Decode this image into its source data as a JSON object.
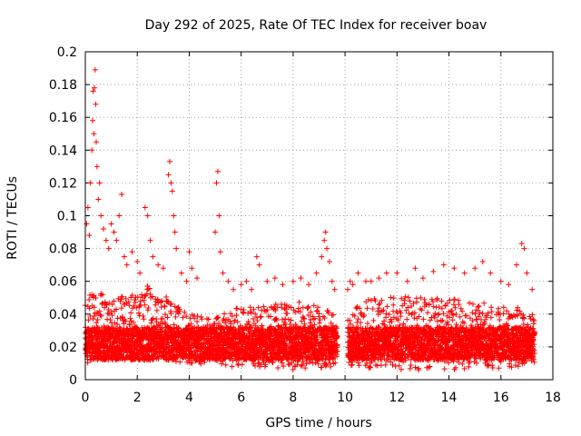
{
  "chart_data": {
    "type": "scatter",
    "title": "Day 292 of 2025, Rate Of TEC Index for receiver boav",
    "xlabel": "GPS time / hours",
    "ylabel": "ROTI / TECUs",
    "xlim": [
      0,
      18
    ],
    "ylim": [
      0,
      0.2
    ],
    "xticks": [
      "0",
      "2",
      "4",
      "6",
      "8",
      "10",
      "12",
      "14",
      "16",
      "18"
    ],
    "yticks": [
      "0",
      "0.02",
      "0.04",
      "0.06",
      "0.08",
      "0.1",
      "0.12",
      "0.14",
      "0.16",
      "0.18",
      "0.2"
    ],
    "grid": true,
    "marker": "+",
    "color": "#ff0000",
    "series": [
      {
        "points": [
          [
            0.05,
            0.095
          ],
          [
            0.1,
            0.105
          ],
          [
            0.15,
            0.088
          ],
          [
            0.2,
            0.12
          ],
          [
            0.25,
            0.14
          ],
          [
            0.28,
            0.158
          ],
          [
            0.3,
            0.176
          ],
          [
            0.33,
            0.15
          ],
          [
            0.35,
            0.178
          ],
          [
            0.38,
            0.189
          ],
          [
            0.4,
            0.168
          ],
          [
            0.42,
            0.145
          ],
          [
            0.45,
            0.13
          ],
          [
            0.5,
            0.11
          ],
          [
            0.55,
            0.12
          ],
          [
            0.6,
            0.1
          ],
          [
            0.7,
            0.092
          ],
          [
            0.8,
            0.085
          ],
          [
            0.9,
            0.08
          ],
          [
            1.0,
            0.095
          ],
          [
            1.1,
            0.09
          ],
          [
            1.2,
            0.085
          ],
          [
            1.3,
            0.1
          ],
          [
            1.4,
            0.113
          ],
          [
            1.5,
            0.075
          ],
          [
            1.6,
            0.07
          ],
          [
            1.8,
            0.078
          ],
          [
            2.0,
            0.072
          ],
          [
            2.1,
            0.065
          ],
          [
            2.3,
            0.105
          ],
          [
            2.4,
            0.1
          ],
          [
            2.5,
            0.085
          ],
          [
            2.6,
            0.075
          ],
          [
            2.8,
            0.07
          ],
          [
            3.0,
            0.068
          ],
          [
            3.2,
            0.125
          ],
          [
            3.25,
            0.133
          ],
          [
            3.3,
            0.12
          ],
          [
            3.35,
            0.115
          ],
          [
            3.4,
            0.1
          ],
          [
            3.45,
            0.09
          ],
          [
            3.5,
            0.08
          ],
          [
            3.7,
            0.065
          ],
          [
            3.9,
            0.06
          ],
          [
            4.0,
            0.078
          ],
          [
            4.1,
            0.068
          ],
          [
            4.3,
            0.062
          ],
          [
            5.0,
            0.09
          ],
          [
            5.05,
            0.12
          ],
          [
            5.1,
            0.127
          ],
          [
            5.15,
            0.1
          ],
          [
            5.2,
            0.078
          ],
          [
            5.3,
            0.065
          ],
          [
            5.5,
            0.06
          ],
          [
            5.7,
            0.055
          ],
          [
            6.0,
            0.058
          ],
          [
            6.2,
            0.06
          ],
          [
            6.4,
            0.055
          ],
          [
            6.6,
            0.075
          ],
          [
            6.7,
            0.07
          ],
          [
            7.0,
            0.06
          ],
          [
            7.3,
            0.062
          ],
          [
            7.6,
            0.058
          ],
          [
            8.0,
            0.06
          ],
          [
            8.3,
            0.062
          ],
          [
            8.6,
            0.058
          ],
          [
            8.9,
            0.065
          ],
          [
            9.1,
            0.075
          ],
          [
            9.2,
            0.085
          ],
          [
            9.25,
            0.09
          ],
          [
            9.3,
            0.08
          ],
          [
            9.4,
            0.072
          ],
          [
            9.5,
            0.06
          ],
          [
            9.6,
            0.055
          ],
          [
            10.1,
            0.055
          ],
          [
            10.2,
            0.06
          ],
          [
            10.3,
            0.058
          ],
          [
            10.5,
            0.065
          ],
          [
            10.8,
            0.06
          ],
          [
            11.0,
            0.06
          ],
          [
            11.3,
            0.062
          ],
          [
            11.6,
            0.065
          ],
          [
            12.0,
            0.065
          ],
          [
            12.4,
            0.06
          ],
          [
            12.7,
            0.068
          ],
          [
            13.0,
            0.062
          ],
          [
            13.4,
            0.066
          ],
          [
            13.8,
            0.07
          ],
          [
            14.2,
            0.068
          ],
          [
            14.6,
            0.065
          ],
          [
            15.0,
            0.068
          ],
          [
            15.3,
            0.072
          ],
          [
            15.6,
            0.065
          ],
          [
            16.0,
            0.06
          ],
          [
            16.3,
            0.058
          ],
          [
            16.6,
            0.07
          ],
          [
            16.8,
            0.083
          ],
          [
            16.9,
            0.08
          ],
          [
            17.0,
            0.065
          ],
          [
            17.2,
            0.055
          ]
        ],
        "band": {
          "segments": [
            [
              0.0,
              9.7
            ],
            [
              10.1,
              17.3
            ]
          ],
          "upper": [
            [
              0.0,
              0.05
            ],
            [
              0.5,
              0.055
            ],
            [
              1.0,
              0.05
            ],
            [
              1.5,
              0.052
            ],
            [
              2.0,
              0.055
            ],
            [
              2.5,
              0.058
            ],
            [
              3.0,
              0.052
            ],
            [
              3.5,
              0.045
            ],
            [
              4.0,
              0.04
            ],
            [
              5.0,
              0.038
            ],
            [
              6.0,
              0.045
            ],
            [
              7.0,
              0.045
            ],
            [
              8.0,
              0.048
            ],
            [
              9.0,
              0.045
            ],
            [
              9.7,
              0.04
            ],
            [
              10.1,
              0.045
            ],
            [
              11.0,
              0.05
            ],
            [
              12.0,
              0.052
            ],
            [
              13.0,
              0.05
            ],
            [
              14.0,
              0.05
            ],
            [
              15.0,
              0.048
            ],
            [
              16.0,
              0.045
            ],
            [
              17.0,
              0.045
            ],
            [
              17.3,
              0.04
            ]
          ],
          "lower": [
            [
              0.0,
              0.01
            ],
            [
              1.0,
              0.012
            ],
            [
              2.0,
              0.012
            ],
            [
              3.0,
              0.012
            ],
            [
              4.0,
              0.01
            ],
            [
              5.0,
              0.008
            ],
            [
              6.0,
              0.008
            ],
            [
              7.0,
              0.006
            ],
            [
              8.0,
              0.006
            ],
            [
              9.0,
              0.007
            ],
            [
              9.7,
              0.008
            ],
            [
              10.1,
              0.008
            ],
            [
              11.0,
              0.006
            ],
            [
              12.0,
              0.006
            ],
            [
              13.0,
              0.006
            ],
            [
              14.0,
              0.006
            ],
            [
              15.0,
              0.007
            ],
            [
              16.0,
              0.007
            ],
            [
              17.0,
              0.008
            ],
            [
              17.3,
              0.01
            ]
          ],
          "core": [
            0.012,
            0.032
          ]
        }
      }
    ]
  }
}
